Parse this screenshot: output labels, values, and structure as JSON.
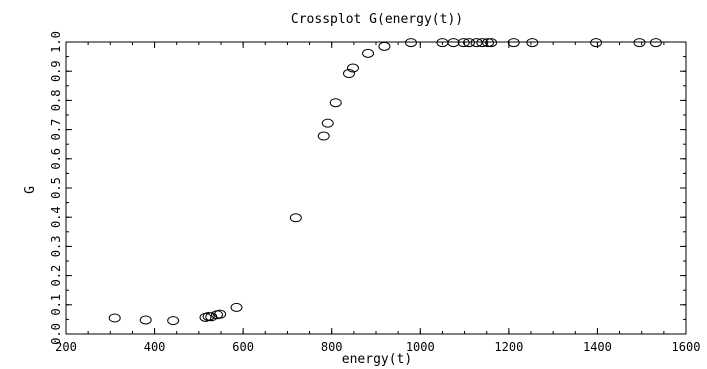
{
  "chart_data": {
    "type": "scatter",
    "title": "Crossplot G(energy(t))",
    "xlabel": "energy(t)",
    "ylabel": "G",
    "xlim": [
      200,
      1600
    ],
    "ylim": [
      0.0,
      1.0
    ],
    "xticks": [
      "200",
      "400",
      "600",
      "800",
      "1000",
      "1200",
      "1400",
      "1600"
    ],
    "yticks": [
      "0.0",
      "0.1",
      "0.2",
      "0.3",
      "0.4",
      "0.5",
      "0.6",
      "0.7",
      "0.8",
      "0.9",
      "1.0"
    ],
    "grid": false,
    "marker": "open-circle",
    "series": [
      {
        "points": [
          [
            310,
            0.055
          ],
          [
            380,
            0.048
          ],
          [
            442,
            0.046
          ],
          [
            515,
            0.057
          ],
          [
            522,
            0.06
          ],
          [
            528,
            0.059
          ],
          [
            541,
            0.066
          ],
          [
            548,
            0.068
          ],
          [
            585,
            0.091
          ],
          [
            719,
            0.398
          ],
          [
            782,
            0.678
          ],
          [
            791,
            0.722
          ],
          [
            809,
            0.792
          ],
          [
            839,
            0.892
          ],
          [
            848,
            0.911
          ],
          [
            882,
            0.961
          ],
          [
            919,
            0.985
          ],
          [
            979,
            0.998
          ],
          [
            1050,
            0.998
          ],
          [
            1075,
            0.998
          ],
          [
            1098,
            0.998
          ],
          [
            1110,
            0.998
          ],
          [
            1127,
            0.998
          ],
          [
            1140,
            0.998
          ],
          [
            1153,
            0.998
          ],
          [
            1160,
            0.998
          ],
          [
            1211,
            0.998
          ],
          [
            1253,
            0.998
          ],
          [
            1397,
            0.998
          ],
          [
            1495,
            0.998
          ],
          [
            1532,
            0.998
          ]
        ]
      }
    ]
  }
}
